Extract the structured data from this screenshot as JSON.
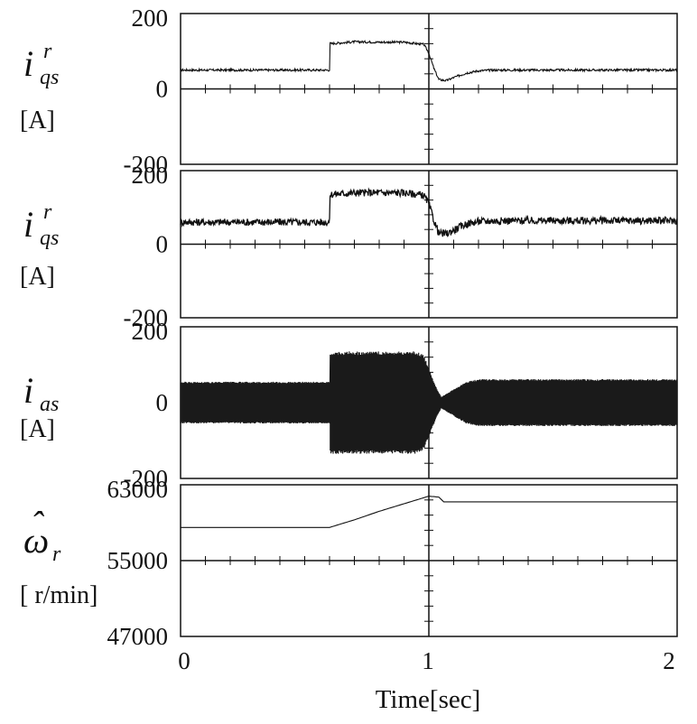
{
  "chart_data": [
    {
      "type": "line",
      "ylabel_symbol": "i",
      "ylabel_superscript": "r",
      "ylabel_subscript": "qs",
      "unit": "[A]",
      "ylim": [
        -200,
        200
      ],
      "yticks": [
        "200",
        "0",
        "-200"
      ],
      "xlim": [
        0,
        2
      ],
      "series": [
        {
          "x": [
            0,
            0.6,
            0.6,
            0.7,
            0.8,
            0.9,
            0.98,
            1.0,
            1.02,
            1.04,
            1.07,
            1.1,
            1.15,
            1.2,
            1.25,
            1.3,
            1.4,
            1.6,
            2.0
          ],
          "y": [
            50,
            50,
            120,
            125,
            124,
            124,
            118,
            95,
            55,
            25,
            22,
            30,
            42,
            48,
            50,
            50,
            50,
            50,
            50
          ],
          "ripple": 3
        }
      ]
    },
    {
      "type": "line",
      "ylabel_symbol": "i",
      "ylabel_superscript": "r",
      "ylabel_subscript": "qs",
      "unit": "[A]",
      "ylim": [
        -200,
        200
      ],
      "yticks": [
        "200",
        "0",
        "-200"
      ],
      "xlim": [
        0,
        2
      ],
      "series": [
        {
          "x": [
            0,
            0.6,
            0.6,
            0.7,
            0.8,
            0.9,
            0.98,
            1.0,
            1.02,
            1.04,
            1.07,
            1.1,
            1.15,
            1.2,
            1.3,
            1.5,
            2.0
          ],
          "y": [
            60,
            60,
            135,
            140,
            140,
            140,
            133,
            110,
            65,
            30,
            28,
            38,
            55,
            62,
            64,
            64,
            64
          ],
          "ripple": 10
        }
      ]
    },
    {
      "type": "line",
      "ylabel_symbol": "i",
      "ylabel_subscript": "as",
      "unit": "[A]",
      "ylim": [
        -200,
        200
      ],
      "yticks": [
        "200",
        "0",
        "-200"
      ],
      "xlim": [
        0,
        2
      ],
      "series": [
        {
          "x": [
            0,
            0.6,
            0.6,
            0.95,
            0.98,
            1.0,
            1.03,
            1.05,
            1.1,
            1.15,
            1.2,
            1.25,
            2.0
          ],
          "envelope": [
            55,
            55,
            135,
            135,
            125,
            90,
            40,
            15,
            35,
            55,
            62,
            62,
            62
          ],
          "cycles_per_sec": 340
        }
      ]
    },
    {
      "type": "line",
      "ylabel_symbol": "ω",
      "ylabel_hat": "ˆ",
      "ylabel_subscript": "r",
      "unit": "[ r/min]",
      "ylim": [
        47000,
        63000
      ],
      "yticks": [
        "63000",
        "55000",
        "47000"
      ],
      "xlim": [
        0,
        2
      ],
      "series": [
        {
          "x": [
            0,
            0.6,
            0.7,
            0.8,
            0.9,
            1.0,
            1.04,
            1.06,
            2.0
          ],
          "y": [
            58500,
            58500,
            59300,
            60200,
            61000,
            61800,
            61700,
            61200,
            61200
          ]
        }
      ]
    }
  ],
  "shared_x": {
    "ticks": [
      "0",
      "1",
      "2"
    ],
    "label": "Time[sec]"
  }
}
